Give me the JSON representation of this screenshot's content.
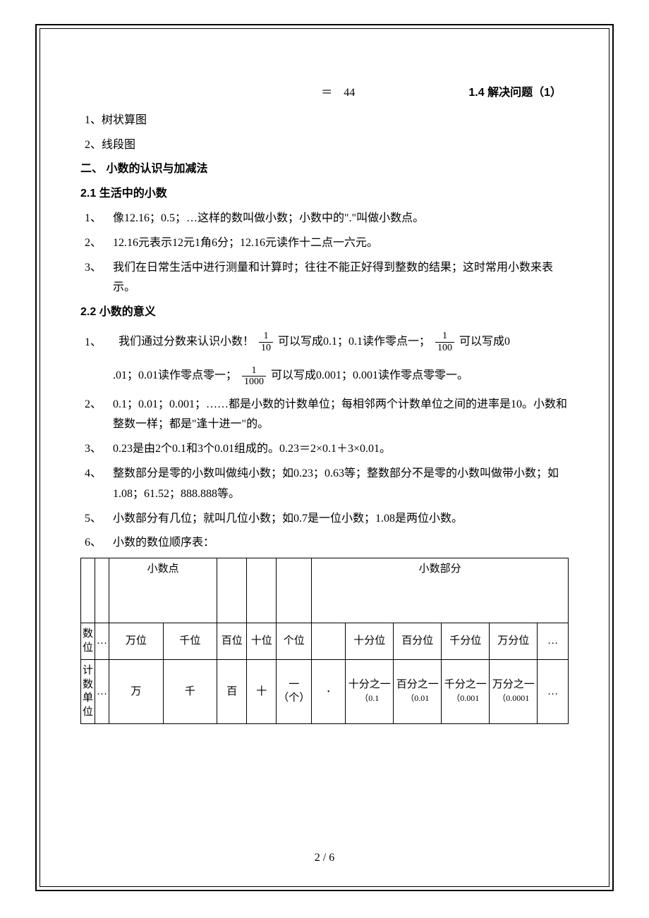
{
  "top": {
    "eq": "＝　44",
    "right": "1.4 解决问题（1）"
  },
  "list1": {
    "i1": "1、树状算图",
    "i2": "2、线段图"
  },
  "sec2": {
    "title": "二、 小数的认识与加减法"
  },
  "s21": {
    "title": "2.1 生活中的小数",
    "p1n": "1、",
    "p1t": "像12.16；0.5；…这样的数叫做小数；小数中的\".\"叫做小数点。",
    "p2n": "2、",
    "p2t": "12.16元表示12元1角6分；12.16元读作十二点一六元。",
    "p3n": "3、",
    "p3t": "我们在日常生活中进行测量和计算时；往往不能正好得到整数的结果；这时常用小数来表示。"
  },
  "s22": {
    "title": "2.2 小数的意义",
    "p1n": "1、",
    "p1a": "我们通过分数来认识小数！",
    "p1b": "可以写成0.1；0.1读作零点一；",
    "p1c": "可以写成0",
    "p1d": ".01；0.01读作零点零一；",
    "p1e": "可以写成0.001；0.001读作零点零零一。",
    "f1n": "1",
    "f1d": "10",
    "f2n": "1",
    "f2d": "100",
    "f3n": "1",
    "f3d": "1000",
    "p2n": "2、",
    "p2t": "0.1；0.01；0.001；……都是小数的计数单位；每相邻两个计数单位之间的进率是10。小数和整数一样；都是\"逢十进一\"的。",
    "p3n": "3、",
    "p3t": "0.23是由2个0.1和3个0.01组成的。0.23＝2×0.1＋3×0.01。",
    "p4n": "4、",
    "p4t": "整数部分是零的小数叫做纯小数；如0.23；0.63等；整数部分不是零的小数叫做带小数；如1.08；61.52；888.888等。",
    "p5n": "5、",
    "p5t": "小数部分有几位；就叫几位小数；如0.7是一位小数；1.08是两位小数。",
    "p6n": "6、",
    "p6t": "小数的数位顺序表："
  },
  "table": {
    "hdr_point": "小数点",
    "hdr_frac": "小数部分",
    "r1_lbl": "数位",
    "r1_c": [
      "…",
      "万位",
      "千位",
      "百位",
      "十位",
      "个位",
      "",
      "十分位",
      "百分位",
      "千分位",
      "万分位",
      "…"
    ],
    "r2_lbl": "计数单位",
    "r2_c": [
      "…",
      "万",
      "千",
      "百",
      "十",
      "一（个）",
      "·",
      "十分之一",
      "百分之一",
      "千分之一",
      "万分之一",
      "…"
    ],
    "r2_note": [
      "",
      "",
      "",
      "",
      "",
      "",
      "",
      "（0.1",
      "（0.01",
      "（0.001",
      "（0.0001",
      ""
    ]
  },
  "foot": "2 / 6"
}
